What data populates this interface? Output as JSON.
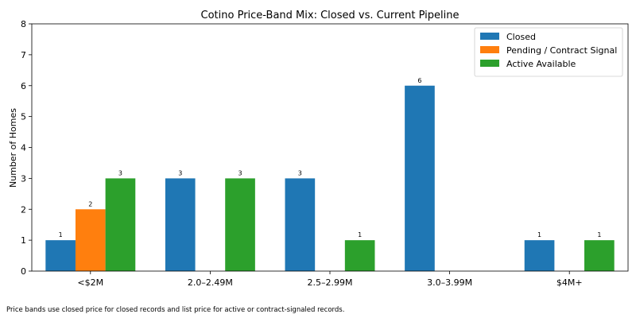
{
  "chart_data": {
    "type": "bar",
    "title": "Cotino Price-Band Mix: Closed vs. Current Pipeline",
    "xlabel": "",
    "ylabel": "Number of Homes",
    "categories": [
      "<$2M",
      "2.0–2.49M",
      "2.5–2.99M",
      "3.0–3.99M",
      "$4M+"
    ],
    "ylim": [
      0,
      8
    ],
    "yticks": [
      "0",
      "1",
      "2",
      "3",
      "4",
      "5",
      "6",
      "7",
      "8"
    ],
    "grid": false,
    "legend_position": "top-right",
    "series": [
      {
        "name": "Closed",
        "color": "#1f77b4",
        "values": [
          1,
          3,
          3,
          6,
          1
        ]
      },
      {
        "name": "Pending / Contract Signal",
        "color": "#ff7f0e",
        "values": [
          2,
          0,
          0,
          0,
          0
        ]
      },
      {
        "name": "Active Available",
        "color": "#2ca02c",
        "values": [
          3,
          3,
          1,
          0,
          1
        ]
      }
    ]
  },
  "footnote": "Price bands use closed price for closed records and list price for active or contract-signaled records."
}
